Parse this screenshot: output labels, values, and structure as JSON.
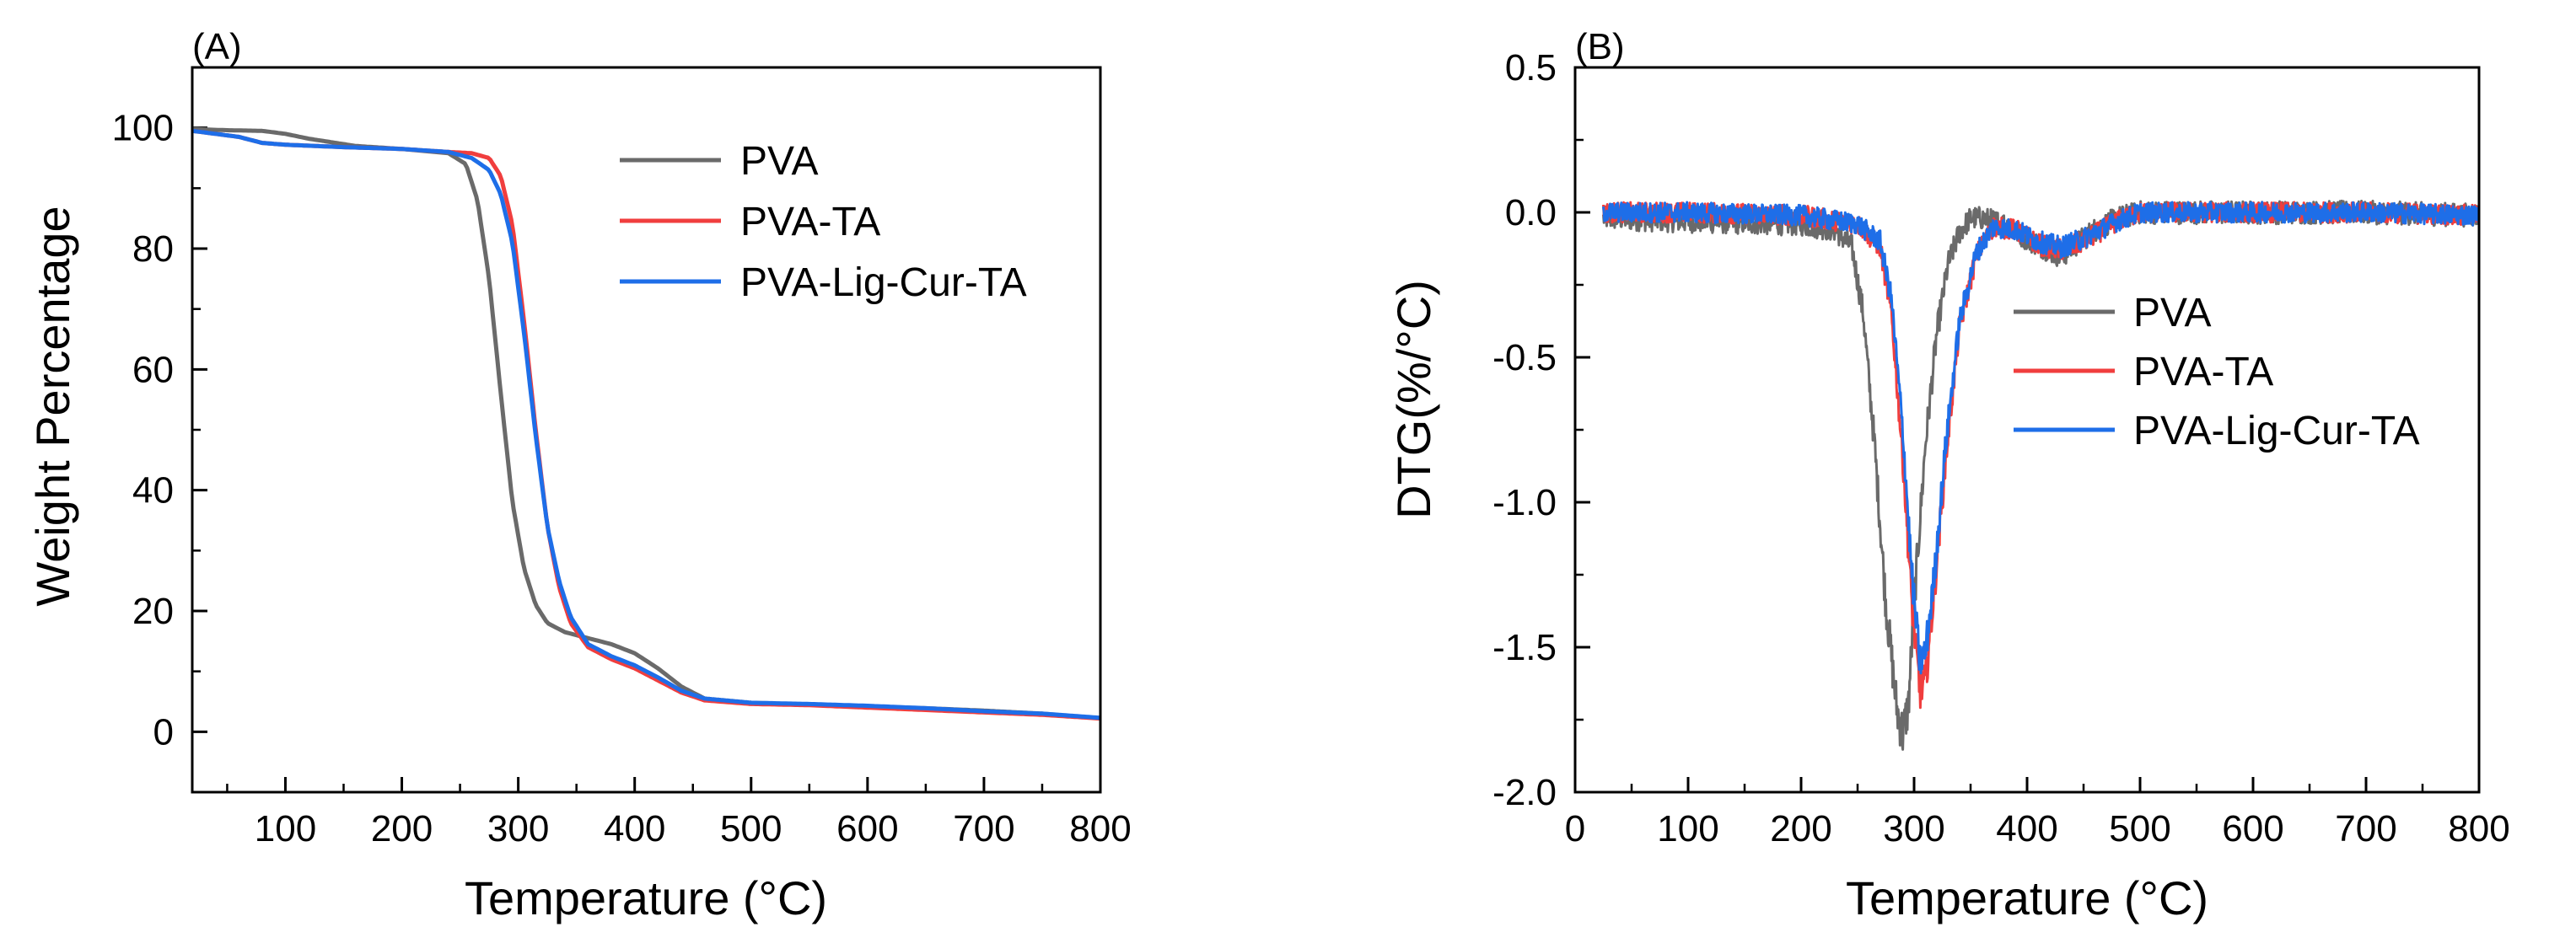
{
  "chart_data": [
    {
      "panel_label": "(A)",
      "type": "line",
      "xlabel": "Temperature (°C)",
      "ylabel": "Weight Percentage",
      "xlim": [
        20,
        800
      ],
      "ylim": [
        -10,
        110
      ],
      "xticks": [
        100,
        200,
        300,
        400,
        500,
        600,
        700,
        800
      ],
      "xtick_labels": [
        "100",
        "200",
        "300",
        "400",
        "500",
        "600",
        "700",
        "800"
      ],
      "yticks": [
        0,
        20,
        40,
        60,
        80,
        100
      ],
      "ytick_labels": [
        "0",
        "20",
        "40",
        "60",
        "80",
        "100"
      ],
      "legend_position": "top-right",
      "series": [
        {
          "name": "PVA",
          "color": "#6a6a6a",
          "x": [
            20,
            50,
            80,
            100,
            120,
            160,
            200,
            240,
            255,
            265,
            275,
            285,
            295,
            305,
            315,
            325,
            340,
            360,
            380,
            400,
            420,
            440,
            460,
            500,
            550,
            600,
            650,
            700,
            750,
            800
          ],
          "y": [
            99.8,
            99.6,
            99.5,
            99.0,
            98.2,
            97.0,
            96.5,
            95.8,
            94.0,
            88.0,
            75.0,
            56.0,
            38.0,
            27.0,
            21.0,
            18.0,
            16.5,
            15.5,
            14.5,
            13.0,
            10.5,
            7.5,
            5.5,
            4.8,
            4.5,
            4.2,
            3.9,
            3.5,
            3.0,
            2.2
          ]
        },
        {
          "name": "PVA-TA",
          "color": "#f03e3e",
          "x": [
            20,
            40,
            60,
            80,
            100,
            150,
            200,
            240,
            260,
            275,
            285,
            295,
            305,
            315,
            325,
            335,
            345,
            360,
            380,
            400,
            420,
            440,
            460,
            500,
            550,
            600,
            650,
            700,
            750,
            800
          ],
          "y": [
            99.5,
            99.0,
            98.5,
            97.5,
            97.2,
            96.8,
            96.5,
            96.0,
            95.8,
            95.0,
            92.0,
            84.0,
            68.0,
            50.0,
            34.0,
            24.0,
            18.0,
            14.0,
            12.0,
            10.5,
            8.5,
            6.5,
            5.2,
            4.6,
            4.4,
            4.0,
            3.6,
            3.2,
            2.8,
            2.2
          ]
        },
        {
          "name": "PVA-Lig-Cur-TA",
          "color": "#1e6ee8",
          "x": [
            20,
            40,
            60,
            80,
            100,
            150,
            200,
            240,
            260,
            275,
            285,
            295,
            305,
            315,
            325,
            335,
            345,
            360,
            380,
            400,
            420,
            440,
            460,
            500,
            550,
            600,
            650,
            700,
            750,
            800
          ],
          "y": [
            99.5,
            99.0,
            98.5,
            97.5,
            97.2,
            96.8,
            96.5,
            96.0,
            95.0,
            93.0,
            89.0,
            81.0,
            66.0,
            49.0,
            34.0,
            25.0,
            19.0,
            14.5,
            12.5,
            11.0,
            9.0,
            6.8,
            5.5,
            4.8,
            4.6,
            4.3,
            3.9,
            3.4,
            3.0,
            2.3
          ]
        }
      ]
    },
    {
      "panel_label": "(B)",
      "type": "line",
      "xlabel": "Temperature (°C)",
      "ylabel": "DTG(%/°C)",
      "xlim": [
        0,
        800
      ],
      "ylim": [
        -2.0,
        0.5
      ],
      "xticks": [
        0,
        100,
        200,
        300,
        400,
        500,
        600,
        700,
        800
      ],
      "xtick_labels": [
        "0",
        "100",
        "200",
        "300",
        "400",
        "500",
        "600",
        "700",
        "800"
      ],
      "yticks": [
        -2.0,
        -1.5,
        -1.0,
        -0.5,
        0.0,
        0.5
      ],
      "ytick_labels": [
        "-2.0",
        "-1.5",
        "-1.0",
        "-0.5",
        "0.0",
        "0.5"
      ],
      "legend_position": "center-right",
      "series": [
        {
          "name": "PVA",
          "color": "#6a6a6a",
          "x": [
            25,
            100,
            200,
            230,
            245,
            255,
            265,
            275,
            285,
            290,
            295,
            300,
            310,
            320,
            330,
            340,
            350,
            360,
            380,
            400,
            420,
            430,
            440,
            460,
            480,
            500,
            600,
            700,
            800
          ],
          "y": [
            -0.02,
            -0.03,
            -0.04,
            -0.06,
            -0.12,
            -0.35,
            -0.8,
            -1.35,
            -1.72,
            -1.8,
            -1.7,
            -1.35,
            -0.8,
            -0.42,
            -0.18,
            -0.07,
            -0.02,
            -0.02,
            -0.04,
            -0.09,
            -0.13,
            -0.15,
            -0.12,
            -0.06,
            -0.02,
            0.0,
            0.0,
            0.0,
            -0.01
          ],
          "noise": 0.04
        },
        {
          "name": "PVA-TA",
          "color": "#f03e3e",
          "x": [
            25,
            100,
            200,
            250,
            270,
            280,
            290,
            298,
            305,
            310,
            318,
            328,
            340,
            355,
            370,
            390,
            410,
            430,
            450,
            480,
            500,
            600,
            700,
            800
          ],
          "y": [
            0.0,
            0.0,
            -0.01,
            -0.04,
            -0.12,
            -0.35,
            -0.85,
            -1.35,
            -1.65,
            -1.62,
            -1.3,
            -0.85,
            -0.4,
            -0.15,
            -0.05,
            -0.06,
            -0.11,
            -0.13,
            -0.1,
            -0.03,
            0.0,
            0.0,
            0.0,
            -0.01
          ],
          "noise": 0.035
        },
        {
          "name": "PVA-Lig-Cur-TA",
          "color": "#1e6ee8",
          "x": [
            25,
            100,
            200,
            250,
            270,
            280,
            290,
            298,
            305,
            310,
            318,
            328,
            340,
            355,
            370,
            390,
            410,
            430,
            450,
            480,
            500,
            600,
            700,
            800
          ],
          "y": [
            0.0,
            0.0,
            -0.01,
            -0.04,
            -0.1,
            -0.3,
            -0.75,
            -1.25,
            -1.55,
            -1.52,
            -1.25,
            -0.8,
            -0.38,
            -0.14,
            -0.05,
            -0.06,
            -0.1,
            -0.12,
            -0.09,
            -0.03,
            0.0,
            0.0,
            0.0,
            -0.01
          ],
          "noise": 0.035
        }
      ]
    }
  ]
}
